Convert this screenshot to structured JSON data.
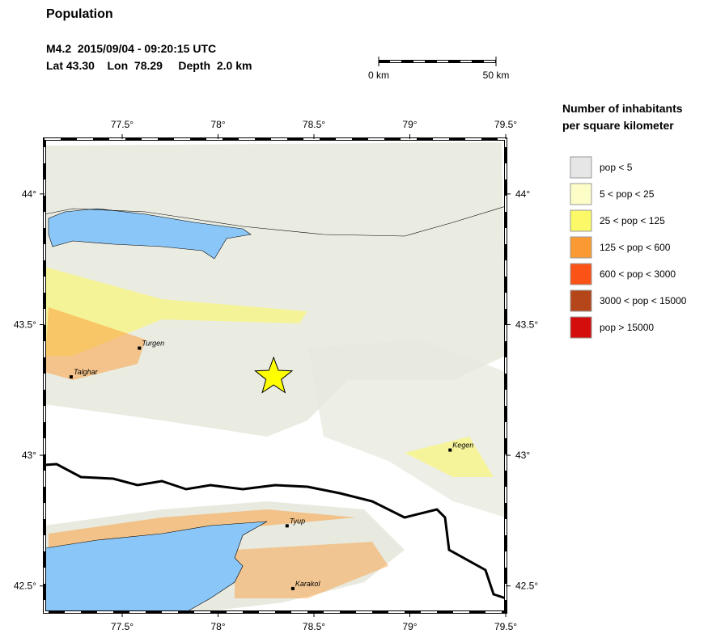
{
  "header": {
    "title": "Population",
    "event": "M4.2  2015/09/04 - 09:20:15 UTC",
    "location": "Lat 43.30    Lon  78.29     Depth  2.0 km"
  },
  "scale_bar": {
    "start_label": "0 km",
    "end_label": "50 km"
  },
  "legend": {
    "title_line1": "Number of inhabitants",
    "title_line2": "per square kilometer",
    "items": [
      {
        "label": "pop < 5",
        "color": "#e6e6e6"
      },
      {
        "label": "5 < pop < 25",
        "color": "#fdfdc8"
      },
      {
        "label": "25 < pop < 125",
        "color": "#fbf967"
      },
      {
        "label": "125 < pop < 600",
        "color": "#fb9a33"
      },
      {
        "label": "600 < pop < 3000",
        "color": "#fb5216"
      },
      {
        "label": "3000 < pop < 15000",
        "color": "#b5461a"
      },
      {
        "label": "pop > 15000",
        "color": "#d40d0d"
      }
    ]
  },
  "map": {
    "xlim": [
      77.095,
      79.5
    ],
    "ylim": [
      42.4,
      44.21
    ],
    "xticks": [
      {
        "value": 77.5,
        "label": "77.5°"
      },
      {
        "value": 78,
        "label": "78°"
      },
      {
        "value": 78.5,
        "label": "78.5°"
      },
      {
        "value": 79,
        "label": "79°"
      },
      {
        "value": 79.5,
        "label": "79.5°"
      }
    ],
    "yticks": [
      {
        "value": 42.5,
        "label": "42.5°"
      },
      {
        "value": 43,
        "label": "43°"
      },
      {
        "value": 43.5,
        "label": "43.5°"
      },
      {
        "value": 44,
        "label": "44°"
      }
    ],
    "epicenter": {
      "lon": 78.29,
      "lat": 43.3
    },
    "cities": [
      {
        "name": "Talghar",
        "lon": 77.234,
        "lat": 43.3
      },
      {
        "name": "Turgen",
        "lon": 77.59,
        "lat": 43.41
      },
      {
        "name": "Kegen",
        "lon": 79.21,
        "lat": 43.02
      },
      {
        "name": "Tyup",
        "lon": 78.36,
        "lat": 42.73
      },
      {
        "name": "Karakol",
        "lon": 78.39,
        "lat": 42.49
      }
    ]
  }
}
